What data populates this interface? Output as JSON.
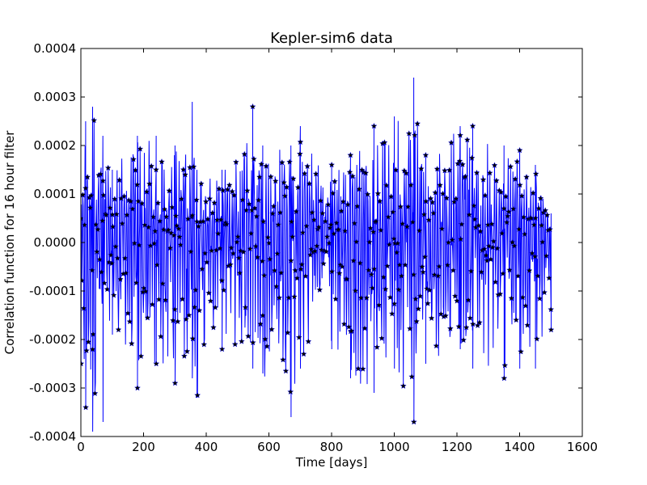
{
  "chart_data": {
    "type": "line",
    "title": "Kepler-sim6 data",
    "xlabel": "Time [days]",
    "ylabel": "Correlation function for 16 hour filter",
    "xlim": [
      0,
      1600
    ],
    "ylim": [
      -0.0004,
      0.0004
    ],
    "xticks": [
      "0",
      "200",
      "400",
      "600",
      "800",
      "1000",
      "1200",
      "1400",
      "1600"
    ],
    "yticks": [
      "0.0004",
      "0.0003",
      "0.0002",
      "0.0001",
      "0.0000",
      "-0.0001",
      "-0.0002",
      "-0.0003",
      "-0.0004"
    ],
    "grid": false,
    "legend": "none",
    "series": [
      {
        "marker": "star",
        "line_color": "#0000ff",
        "marker_color": "#000000",
        "x_range": [
          0,
          1500
        ],
        "envelope": [
          {
            "x": 0,
            "y": [
              -0.00025,
              0.0001
            ]
          },
          {
            "x": 15,
            "y": [
              -0.00034,
              0.00025
            ]
          },
          {
            "x": 37,
            "y": [
              -0.00039,
              0.00028
            ]
          },
          {
            "x": 70,
            "y": [
              -0.00037,
              0.00022
            ]
          },
          {
            "x": 100,
            "y": [
              -0.00019,
              0.00015
            ]
          },
          {
            "x": 180,
            "y": [
              -0.0003,
              0.00022
            ]
          },
          {
            "x": 240,
            "y": [
              -0.00025,
              0.00022
            ]
          },
          {
            "x": 300,
            "y": [
              -0.00029,
              0.0002
            ]
          },
          {
            "x": 355,
            "y": [
              -0.00028,
              0.00029
            ]
          },
          {
            "x": 370,
            "y": [
              -0.00032,
              0.00015
            ]
          },
          {
            "x": 450,
            "y": [
              -0.00022,
              0.00015
            ]
          },
          {
            "x": 548,
            "y": [
              -0.00026,
              0.00028
            ]
          },
          {
            "x": 580,
            "y": [
              -0.00027,
              0.0002
            ]
          },
          {
            "x": 670,
            "y": [
              -0.00036,
              0.0002
            ]
          },
          {
            "x": 700,
            "y": [
              -0.00026,
              0.00024
            ]
          },
          {
            "x": 800,
            "y": [
              -0.00022,
              0.00016
            ]
          },
          {
            "x": 860,
            "y": [
              -0.00028,
              0.00018
            ]
          },
          {
            "x": 935,
            "y": [
              -0.00031,
              0.00024
            ]
          },
          {
            "x": 1000,
            "y": [
              -0.00026,
              0.00026
            ]
          },
          {
            "x": 1062,
            "y": [
              -0.00037,
              0.00034
            ]
          },
          {
            "x": 1100,
            "y": [
              -0.00025,
              0.00018
            ]
          },
          {
            "x": 1210,
            "y": [
              -0.00022,
              0.00024
            ]
          },
          {
            "x": 1250,
            "y": [
              -0.00026,
              0.00024
            ]
          },
          {
            "x": 1350,
            "y": [
              -0.00028,
              0.0002
            ]
          },
          {
            "x": 1400,
            "y": [
              -0.00026,
              0.00019
            ]
          },
          {
            "x": 1450,
            "y": [
              -0.00026,
              0.00016
            ]
          },
          {
            "x": 1500,
            "y": [
              -0.00018,
              6e-05
            ]
          }
        ]
      }
    ]
  }
}
